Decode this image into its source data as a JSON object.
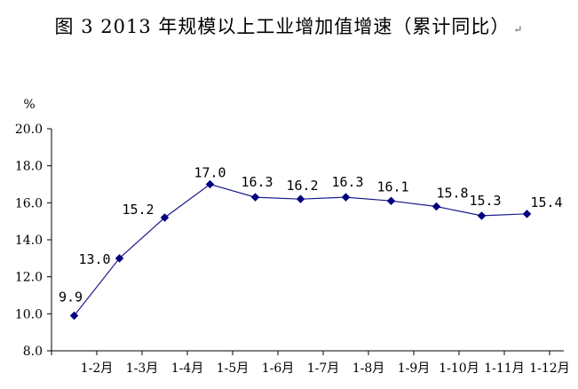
{
  "title": "图 3   2013 年规模以上工业增加值增速（累计同比）",
  "return_mark": "↵",
  "chart_data": {
    "type": "line",
    "ylabel": "%",
    "ylim": [
      8.0,
      20.0
    ],
    "yticks": [
      "8.0",
      "10.0",
      "12.0",
      "14.0",
      "16.0",
      "18.0",
      "20.0"
    ],
    "categories": [
      "1-2月",
      "1-3月",
      "1-4月",
      "1-5月",
      "1-6月",
      "1-7月",
      "1-8月",
      "1-9月",
      "1-10月",
      "1-11月",
      "1-12月"
    ],
    "series": [
      {
        "values": [
          9.9,
          13.0,
          15.2,
          17.0,
          16.3,
          16.2,
          16.3,
          16.1,
          15.8,
          15.3,
          15.4
        ],
        "labels": [
          "9.9",
          "13.0",
          "15.2",
          "17.0",
          "16.3",
          "16.2",
          "16.3",
          "16.1",
          "15.8",
          "15.3",
          "15.4"
        ]
      }
    ],
    "colors": {
      "line": "#1a1a8c",
      "marker": "#000080",
      "axis": "#000000"
    },
    "grid": false,
    "legend": "none"
  }
}
